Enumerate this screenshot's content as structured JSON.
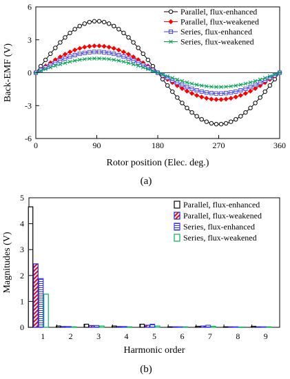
{
  "chart_data": [
    {
      "type": "line",
      "panel_label": "(a)",
      "title": "",
      "xlabel": "Rotor position (Elec. deg.)",
      "ylabel": "Back-EMF (V)",
      "xlim": [
        0,
        360
      ],
      "ylim": [
        -6,
        6
      ],
      "xticks": [
        "0",
        "90",
        "180",
        "270",
        "360"
      ],
      "yticks": [
        "-6",
        "-3",
        "0",
        "3",
        "6"
      ],
      "grid": false,
      "legend_position": "top-right",
      "series": [
        {
          "name": "Parallel, flux-enhanced",
          "marker": "circle",
          "color": "#000000",
          "amplitude": 4.7,
          "x": [
            0,
            45,
            90,
            135,
            180,
            225,
            270,
            315,
            360
          ],
          "values": [
            0,
            3.3,
            4.7,
            3.3,
            0,
            -3.3,
            -4.7,
            -3.3,
            0
          ]
        },
        {
          "name": "Parallel, flux-weakened",
          "marker": "diamond",
          "color": "#ff0000",
          "amplitude": 2.45,
          "x": [
            0,
            45,
            90,
            135,
            180,
            225,
            270,
            315,
            360
          ],
          "values": [
            0,
            1.75,
            2.45,
            1.75,
            0,
            -1.75,
            -2.45,
            -1.75,
            0
          ]
        },
        {
          "name": "Series, flux-enhanced",
          "marker": "square",
          "color": "#3333ff",
          "amplitude": 1.9,
          "x": [
            0,
            45,
            90,
            135,
            180,
            225,
            270,
            315,
            360
          ],
          "values": [
            0,
            1.35,
            1.9,
            1.35,
            0,
            -1.35,
            -1.9,
            -1.35,
            0
          ]
        },
        {
          "name": "Series, flux-weakened",
          "marker": "cross",
          "color": "#00a050",
          "amplitude": 1.3,
          "x": [
            0,
            45,
            90,
            135,
            180,
            225,
            270,
            315,
            360
          ],
          "values": [
            0,
            0.95,
            1.3,
            0.95,
            0,
            -0.95,
            -1.3,
            -0.95,
            0
          ]
        }
      ]
    },
    {
      "type": "bar",
      "panel_label": "(b)",
      "title": "",
      "xlabel": "Harmonic order",
      "ylabel": "Magnitudes (V)",
      "categories": [
        "1",
        "2",
        "3",
        "4",
        "5",
        "6",
        "7",
        "8",
        "9"
      ],
      "ylim": [
        0,
        5
      ],
      "yticks": [
        "0",
        "1",
        "2",
        "3",
        "4",
        "5"
      ],
      "grid": false,
      "legend_position": "top-right",
      "series": [
        {
          "name": "Parallel, flux-enhanced",
          "color": "#000000",
          "pattern": "solid",
          "values": [
            4.65,
            0.05,
            0.12,
            0.05,
            0.12,
            0.02,
            0.04,
            0.02,
            0.04
          ]
        },
        {
          "name": "Parallel, flux-weakened",
          "color": "#2222cc",
          "pattern": "diagonal-red",
          "values": [
            2.45,
            0.03,
            0.07,
            0.03,
            0.08,
            0.02,
            0.05,
            0.02,
            0.02
          ]
        },
        {
          "name": "Series, flux-enhanced",
          "color": "#3333ff",
          "pattern": "horizontal",
          "values": [
            1.88,
            0.03,
            0.07,
            0.03,
            0.12,
            0.02,
            0.08,
            0.02,
            0.02
          ]
        },
        {
          "name": "Series, flux-weakened",
          "color": "#00b050",
          "pattern": "solid",
          "values": [
            1.28,
            0.02,
            0.05,
            0.02,
            0.05,
            0.02,
            0.04,
            0.01,
            0.02
          ]
        }
      ]
    }
  ]
}
